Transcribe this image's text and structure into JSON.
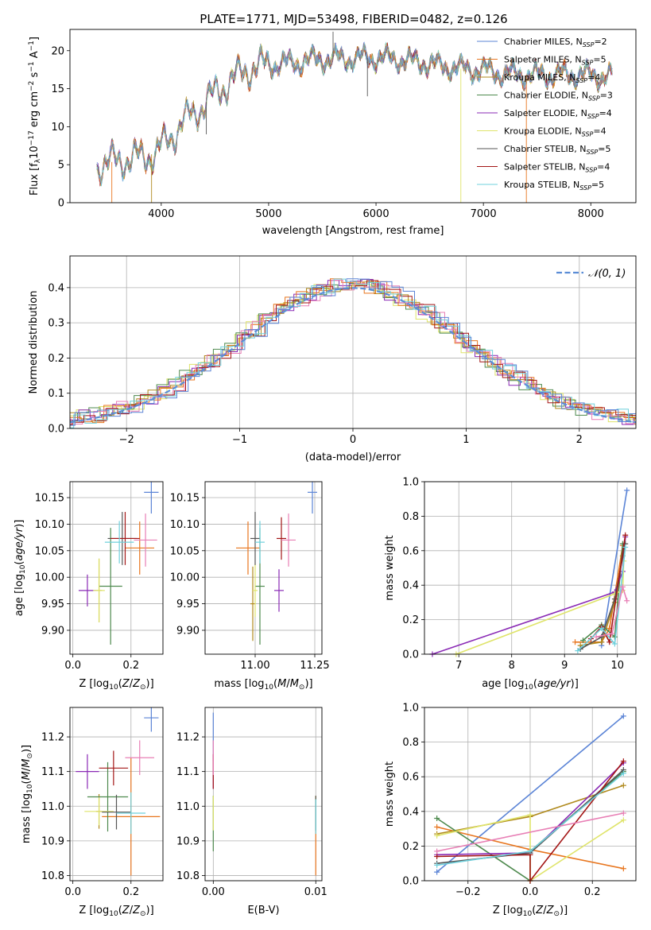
{
  "figure": {
    "title": "PLATE=1771, MJD=53498, FIBERID=0482, z=0.126"
  },
  "colors": {
    "Chabrier MILES": "#5b84d6",
    "Salpeter MILES": "#e8761f",
    "Kroupa MILES": "#b08a1e",
    "Chabrier ELODIE": "#4e8a4e",
    "Salpeter ELODIE": "#8a2ab5",
    "Kroupa ELODIE": "#dfe46a",
    "Chabrier STELIB": "#555555",
    "Salpeter STELIB": "#a31616",
    "Kroupa STELIB": "#6fd0dc",
    "pink": "#e87fb5",
    "gaussian": "#5b8dd6"
  },
  "chart_data": [
    {
      "id": "spectrum",
      "type": "line",
      "xlabel": "wavelength [Angstrom, rest frame]",
      "ylabel": "Flux [f",
      "ylabel_parts": {
        "a": "Flux [f",
        "b": "λ",
        "c": "10",
        "d": "−17",
        "e": " erg cm",
        "f": "−2",
        "g": " s",
        "h": "−1",
        "i": " A",
        "j": "−1",
        "k": "]"
      },
      "xlim": [
        3150,
        8420
      ],
      "ylim": [
        0,
        22.8
      ],
      "xticks": [
        4000,
        5000,
        6000,
        7000,
        8000
      ],
      "yticks": [
        0,
        5,
        10,
        15,
        20
      ],
      "legend_position": "right",
      "legend": [
        {
          "label": "Chabrier MILES, N",
          "sub": "SSP",
          "suffix": "=2",
          "color_key": "Chabrier MILES"
        },
        {
          "label": "Salpeter MILES, N",
          "sub": "SSP",
          "suffix": "=5",
          "color_key": "Salpeter MILES"
        },
        {
          "label": "Kroupa MILES, N",
          "sub": "SSP",
          "suffix": "=4",
          "color_key": "Kroupa MILES"
        },
        {
          "label": "Chabrier ELODIE, N",
          "sub": "SSP",
          "suffix": "=3",
          "color_key": "Chabrier ELODIE"
        },
        {
          "label": "Salpeter ELODIE, N",
          "sub": "SSP",
          "suffix": "=4",
          "color_key": "Salpeter ELODIE"
        },
        {
          "label": "Kroupa ELODIE, N",
          "sub": "SSP",
          "suffix": "=4",
          "color_key": "Kroupa ELODIE"
        },
        {
          "label": "Chabrier STELIB, N",
          "sub": "SSP",
          "suffix": "=5",
          "color_key": "Chabrier STELIB"
        },
        {
          "label": "Salpeter STELIB, N",
          "sub": "SSP",
          "suffix": "=4",
          "color_key": "Salpeter STELIB"
        },
        {
          "label": "Kroupa STELIB, N",
          "sub": "SSP",
          "suffix": "=5",
          "color_key": "Kroupa STELIB"
        }
      ],
      "continuum": [
        [
          3400,
          5.0
        ],
        [
          3600,
          5.5
        ],
        [
          3800,
          6.0
        ],
        [
          3950,
          6.5
        ],
        [
          4050,
          8.0
        ],
        [
          4200,
          10.5
        ],
        [
          4400,
          13.0
        ],
        [
          4600,
          15.5
        ],
        [
          4800,
          17.5
        ],
        [
          5000,
          18.2
        ],
        [
          5200,
          18.3
        ],
        [
          5400,
          18.8
        ],
        [
          5600,
          19.0
        ],
        [
          5800,
          19.0
        ],
        [
          6000,
          19.1
        ],
        [
          6200,
          18.9
        ],
        [
          6400,
          18.5
        ],
        [
          6600,
          18.0
        ],
        [
          6800,
          17.6
        ],
        [
          7000,
          17.4
        ],
        [
          7200,
          17.0
        ],
        [
          7400,
          16.8
        ],
        [
          7600,
          16.8
        ],
        [
          7800,
          16.9
        ],
        [
          8000,
          16.8
        ],
        [
          8200,
          16.5
        ]
      ],
      "spikes": [
        [
          3540,
          0
        ],
        [
          3910,
          0
        ],
        [
          5600,
          22.5
        ],
        [
          6790,
          0
        ],
        [
          7400,
          0
        ],
        [
          5920,
          14.0
        ],
        [
          4420,
          9.0
        ]
      ]
    },
    {
      "id": "residuals",
      "type": "area",
      "xlabel": "(data-model)/error",
      "ylabel": "Normed distribution",
      "xlim": [
        -2.5,
        2.5
      ],
      "ylim": [
        0,
        0.49
      ],
      "xticks": [
        -2,
        -1,
        0,
        1,
        2
      ],
      "yticks": [
        0.0,
        0.1,
        0.2,
        0.3,
        0.4
      ],
      "legend_label": "N(0,1)",
      "legend_position": "top-right"
    },
    {
      "id": "age_vs_Z",
      "type": "scatter",
      "xlabel": "Z [log10(Z/Z⊙)]",
      "ylabel": "age  [log10(age/yr)]",
      "xlim": [
        -0.01,
        0.31
      ],
      "ylim": [
        9.855,
        10.18
      ],
      "xticks": [
        0.0,
        0.2
      ],
      "yticks": [
        9.9,
        9.95,
        10.0,
        10.05,
        10.1,
        10.15
      ],
      "points": [
        {
          "color_key": "Chabrier MILES",
          "x": 0.27,
          "xe": 0.025,
          "y": 10.16,
          "ye": 0.04
        },
        {
          "color_key": "Salpeter MILES",
          "x": 0.23,
          "xe": 0.05,
          "y": 10.055,
          "ye": 0.05
        },
        {
          "color_key": "Kroupa MILES",
          "x": 0.09,
          "xe": 0.01,
          "y": 9.975,
          "ye": 0.06
        },
        {
          "color_key": "Chabrier ELODIE",
          "x": 0.13,
          "xe": 0.04,
          "y": 9.983,
          "ye": 0.11
        },
        {
          "color_key": "Salpeter ELODIE",
          "x": 0.05,
          "xe": 0.03,
          "y": 9.975,
          "ye": 0.03
        },
        {
          "color_key": "Kroupa ELODIE",
          "x": 0.09,
          "xe": 0.02,
          "y": 9.975,
          "ye": 0.06
        },
        {
          "color_key": "Chabrier STELIB",
          "x": 0.17,
          "xe": 0.05,
          "y": 10.073,
          "ye": 0.05
        },
        {
          "color_key": "Salpeter STELIB",
          "x": 0.18,
          "xe": 0.05,
          "y": 10.073,
          "ye": 0.05
        },
        {
          "color_key": "Kroupa STELIB",
          "x": 0.16,
          "xe": 0.05,
          "y": 10.066,
          "ye": 0.04
        },
        {
          "color_key": "pink",
          "x": 0.25,
          "xe": 0.04,
          "y": 10.07,
          "ye": 0.05
        }
      ]
    },
    {
      "id": "age_vs_mass",
      "type": "scatter",
      "xlabel": "mass [log10(M/M⊙)]",
      "ylabel": "",
      "xlim": [
        10.79,
        11.28
      ],
      "ylim": [
        9.855,
        10.18
      ],
      "xticks": [
        11.0,
        11.25
      ],
      "yticks": [
        9.9,
        9.95,
        10.0,
        10.05,
        10.1,
        10.15
      ],
      "points": [
        {
          "color_key": "Chabrier MILES",
          "x": 11.24,
          "xe": 0.02,
          "y": 10.16,
          "ye": 0.04
        },
        {
          "color_key": "Salpeter MILES",
          "x": 10.97,
          "xe": 0.05,
          "y": 10.055,
          "ye": 0.05
        },
        {
          "color_key": "Kroupa MILES",
          "x": 10.99,
          "xe": 0.01,
          "y": 9.95,
          "ye": 0.07
        },
        {
          "color_key": "Chabrier ELODIE",
          "x": 11.02,
          "xe": 0.02,
          "y": 9.983,
          "ye": 0.11
        },
        {
          "color_key": "Salpeter ELODIE",
          "x": 11.1,
          "xe": 0.02,
          "y": 9.975,
          "ye": 0.04
        },
        {
          "color_key": "Kroupa ELODIE",
          "x": 11.0,
          "xe": 0.01,
          "y": 9.975,
          "ye": 0.05
        },
        {
          "color_key": "Chabrier STELIB",
          "x": 11.0,
          "xe": 0.02,
          "y": 10.073,
          "ye": 0.05
        },
        {
          "color_key": "Salpeter STELIB",
          "x": 11.11,
          "xe": 0.02,
          "y": 10.073,
          "ye": 0.04
        },
        {
          "color_key": "Kroupa STELIB",
          "x": 11.02,
          "xe": 0.02,
          "y": 10.066,
          "ye": 0.04
        },
        {
          "color_key": "pink",
          "x": 11.14,
          "xe": 0.03,
          "y": 10.07,
          "ye": 0.05
        }
      ]
    },
    {
      "id": "weight_vs_age",
      "type": "line",
      "xlabel": "age  [log10(age/yr)]",
      "ylabel": "mass weight",
      "xlim": [
        6.35,
        10.35
      ],
      "ylim": [
        0,
        1.0
      ],
      "xticks": [
        7,
        8,
        9,
        10
      ],
      "yticks": [
        0.0,
        0.2,
        0.4,
        0.6,
        0.8,
        1.0
      ],
      "series": [
        {
          "color_key": "Chabrier MILES",
          "x": [
            9.7,
            10.18
          ],
          "y": [
            0.05,
            0.95
          ]
        },
        {
          "color_key": "Salpeter MILES",
          "x": [
            9.2,
            9.7,
            9.85,
            10.1
          ],
          "y": [
            0.07,
            0.07,
            0.15,
            0.63
          ]
        },
        {
          "color_key": "Kroupa MILES",
          "x": [
            9.3,
            9.7,
            9.95,
            10.1
          ],
          "y": [
            0.05,
            0.07,
            0.3,
            0.57
          ]
        },
        {
          "color_key": "Chabrier ELODIE",
          "x": [
            9.35,
            9.7,
            9.95,
            10.1
          ],
          "y": [
            0.08,
            0.17,
            0.1,
            0.64
          ]
        },
        {
          "color_key": "Salpeter ELODIE",
          "x": [
            6.5,
            9.95,
            10.1,
            10.15
          ],
          "y": [
            0.0,
            0.36,
            0.48,
            0.68
          ]
        },
        {
          "color_key": "Kroupa ELODIE",
          "x": [
            6.95,
            9.95,
            10.1,
            10.12
          ],
          "y": [
            0.0,
            0.35,
            0.37,
            0.54
          ]
        },
        {
          "color_key": "Chabrier STELIB",
          "x": [
            9.3,
            9.7,
            9.95,
            10.15
          ],
          "y": [
            0.03,
            0.1,
            0.32,
            0.64
          ]
        },
        {
          "color_key": "Salpeter STELIB",
          "x": [
            9.5,
            9.7,
            9.85,
            10.15
          ],
          "y": [
            0.09,
            0.16,
            0.07,
            0.69
          ]
        },
        {
          "color_key": "Kroupa STELIB",
          "x": [
            9.25,
            9.7,
            9.95,
            10.15
          ],
          "y": [
            0.02,
            0.15,
            0.06,
            0.62
          ]
        },
        {
          "color_key": "pink",
          "x": [
            9.6,
            9.9,
            10.1,
            10.18
          ],
          "y": [
            0.1,
            0.12,
            0.39,
            0.31
          ]
        }
      ]
    },
    {
      "id": "mass_vs_Z",
      "type": "scatter",
      "xlabel": "Z [log10(Z/Z⊙)]",
      "ylabel": "mass [log10(M/M⊙)]",
      "xlim": [
        -0.01,
        0.31
      ],
      "ylim": [
        10.785,
        11.285
      ],
      "xticks": [
        0.0,
        0.2
      ],
      "yticks": [
        10.8,
        10.9,
        11.0,
        11.1,
        11.2
      ],
      "points": [
        {
          "color_key": "Chabrier MILES",
          "x": 0.27,
          "xe": 0.025,
          "y": 11.255,
          "ye": 0.04
        },
        {
          "color_key": "Salpeter MILES",
          "x": 0.2,
          "xe": 0.1,
          "y": 10.97,
          "ye": 0.17
        },
        {
          "color_key": "Kroupa MILES",
          "x": 0.09,
          "xe": 0.01,
          "y": 10.985,
          "ye": 0.05
        },
        {
          "color_key": "Chabrier ELODIE",
          "x": 0.12,
          "xe": 0.07,
          "y": 11.027,
          "ye": 0.1
        },
        {
          "color_key": "Salpeter ELODIE",
          "x": 0.05,
          "xe": 0.04,
          "y": 11.1,
          "ye": 0.05
        },
        {
          "color_key": "Kroupa ELODIE",
          "x": 0.09,
          "xe": 0.05,
          "y": 10.985,
          "ye": 0.04
        },
        {
          "color_key": "Chabrier STELIB",
          "x": 0.15,
          "xe": 0.05,
          "y": 10.983,
          "ye": 0.05
        },
        {
          "color_key": "Salpeter STELIB",
          "x": 0.14,
          "xe": 0.05,
          "y": 11.11,
          "ye": 0.05
        },
        {
          "color_key": "Kroupa STELIB",
          "x": 0.2,
          "xe": 0.05,
          "y": 10.98,
          "ye": 0.06
        },
        {
          "color_key": "pink",
          "x": 0.23,
          "xe": 0.05,
          "y": 11.14,
          "ye": 0.05
        }
      ]
    },
    {
      "id": "mass_vs_ebv",
      "type": "scatter",
      "xlabel": "E(B-V)",
      "ylabel": "",
      "xlim": [
        -0.0008,
        0.0106
      ],
      "ylim": [
        10.785,
        11.285
      ],
      "xticks": [
        0.0,
        0.01
      ],
      "yticks": [
        10.8,
        10.9,
        11.0,
        11.1,
        11.2
      ],
      "points": [
        {
          "color_key": "Chabrier MILES",
          "x": 0.0,
          "xe": 0,
          "y": 11.2,
          "ye": 0.07
        },
        {
          "color_key": "Salpeter MILES",
          "x": 0.01,
          "xe": 0,
          "y": 10.9,
          "ye": 0.1
        },
        {
          "color_key": "Kroupa MILES",
          "x": 0.01,
          "xe": 0,
          "y": 10.98,
          "ye": 0.05
        },
        {
          "color_key": "Chabrier ELODIE",
          "x": 0.0,
          "xe": 0,
          "y": 10.95,
          "ye": 0.08
        },
        {
          "color_key": "Salpeter ELODIE",
          "x": 0.0,
          "xe": 0,
          "y": 11.1,
          "ye": 0.05
        },
        {
          "color_key": "Kroupa ELODIE",
          "x": 0.0,
          "xe": 0,
          "y": 10.98,
          "ye": 0.05
        },
        {
          "color_key": "Chabrier STELIB",
          "x": 0.01,
          "xe": 0,
          "y": 10.98,
          "ye": 0.05
        },
        {
          "color_key": "Salpeter STELIB",
          "x": 0.0,
          "xe": 0,
          "y": 11.1,
          "ye": 0.05
        },
        {
          "color_key": "Kroupa STELIB",
          "x": 0.01,
          "xe": 0,
          "y": 10.97,
          "ye": 0.05
        },
        {
          "color_key": "pink",
          "x": 0.0,
          "xe": 0,
          "y": 11.14,
          "ye": 0.05
        }
      ]
    },
    {
      "id": "weight_vs_Z",
      "type": "line",
      "xlabel": "Z [log10(Z/Z⊙)]",
      "ylabel": "mass weight",
      "xlim": [
        -0.34,
        0.34
      ],
      "ylim": [
        0,
        1.0
      ],
      "xticks": [
        -0.2,
        0.0,
        0.2
      ],
      "yticks": [
        0.0,
        0.2,
        0.4,
        0.6,
        0.8,
        1.0
      ],
      "series": [
        {
          "color_key": "Chabrier MILES",
          "x": [
            -0.3,
            0.3
          ],
          "y": [
            0.05,
            0.95
          ]
        },
        {
          "color_key": "Salpeter MILES",
          "x": [
            -0.3,
            0.0,
            0.3
          ],
          "y": [
            0.31,
            0.18,
            0.07
          ]
        },
        {
          "color_key": "Kroupa MILES",
          "x": [
            -0.3,
            0.0,
            0.3
          ],
          "y": [
            0.27,
            0.37,
            0.55
          ]
        },
        {
          "color_key": "Chabrier ELODIE",
          "x": [
            -0.3,
            0.0,
            0.0,
            0.3
          ],
          "y": [
            0.36,
            0.0,
            0.17,
            0.63
          ]
        },
        {
          "color_key": "Salpeter ELODIE",
          "x": [
            -0.3,
            0.0,
            0.3
          ],
          "y": [
            0.15,
            0.16,
            0.68
          ]
        },
        {
          "color_key": "Kroupa ELODIE",
          "x": [
            -0.3,
            0.0,
            0.0,
            0.3
          ],
          "y": [
            0.26,
            0.38,
            0.0,
            0.35
          ]
        },
        {
          "color_key": "Chabrier STELIB",
          "x": [
            -0.3,
            0.0,
            0.3
          ],
          "y": [
            0.1,
            0.16,
            0.64
          ]
        },
        {
          "color_key": "Salpeter STELIB",
          "x": [
            -0.3,
            0.0,
            0.0,
            0.3
          ],
          "y": [
            0.14,
            0.15,
            0.0,
            0.69
          ]
        },
        {
          "color_key": "Kroupa STELIB",
          "x": [
            -0.3,
            0.0,
            0.3
          ],
          "y": [
            0.09,
            0.17,
            0.62
          ]
        },
        {
          "color_key": "pink",
          "x": [
            -0.3,
            0.3
          ],
          "y": [
            0.17,
            0.39
          ]
        }
      ]
    }
  ]
}
